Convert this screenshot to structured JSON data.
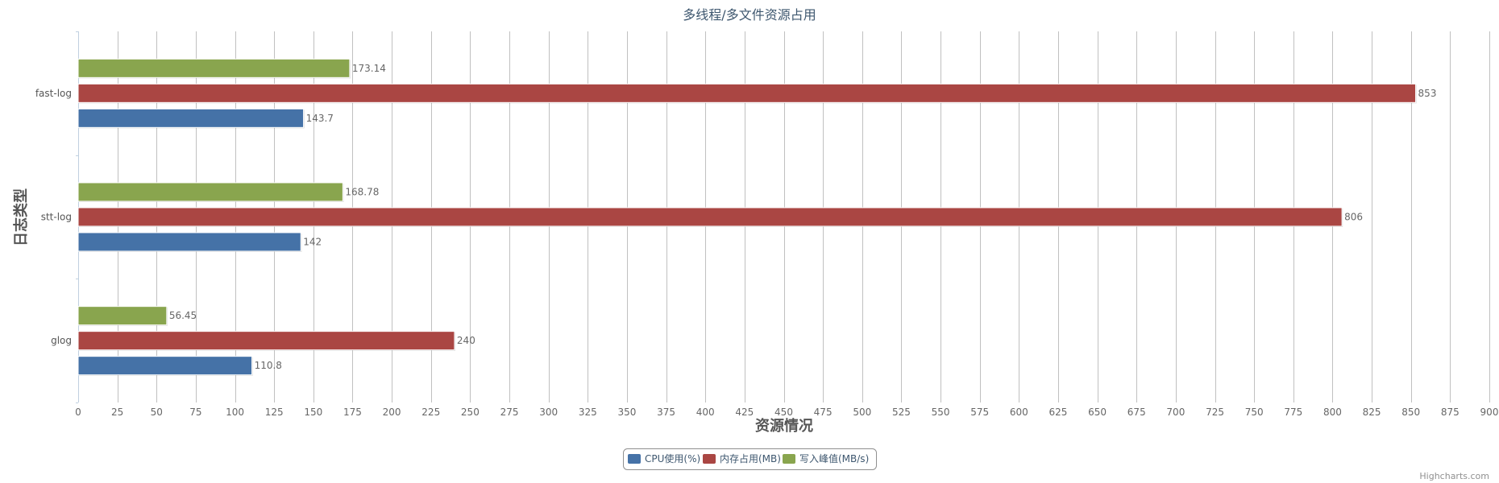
{
  "chart_data": {
    "type": "bar",
    "orientation": "horizontal",
    "title": "多线程/多文件资源占用",
    "xlabel": "日志类型",
    "ylabel": "资源情况",
    "categories": [
      "fast-log",
      "stt-log",
      "glog"
    ],
    "series": [
      {
        "name": "CPU使用(%)",
        "color": "#4572A7",
        "values": [
          143.7,
          142,
          110.8
        ],
        "labels": [
          "143.7",
          "142",
          "110.8"
        ]
      },
      {
        "name": "内存占用(MB)",
        "color": "#AA4643",
        "values": [
          853,
          806,
          240
        ],
        "labels": [
          "853",
          "806",
          "240"
        ]
      },
      {
        "name": "写入峰值(MB/s)",
        "color": "#89A54E",
        "values": [
          173.14,
          168.78,
          56.45
        ],
        "labels": [
          "173.14",
          "168.78",
          "56.45"
        ]
      }
    ],
    "ylim": [
      0,
      900
    ],
    "tick_interval": 25,
    "grid": true,
    "legend_position": "bottom-center",
    "data_labels": true
  },
  "credits": "Highcharts.com"
}
